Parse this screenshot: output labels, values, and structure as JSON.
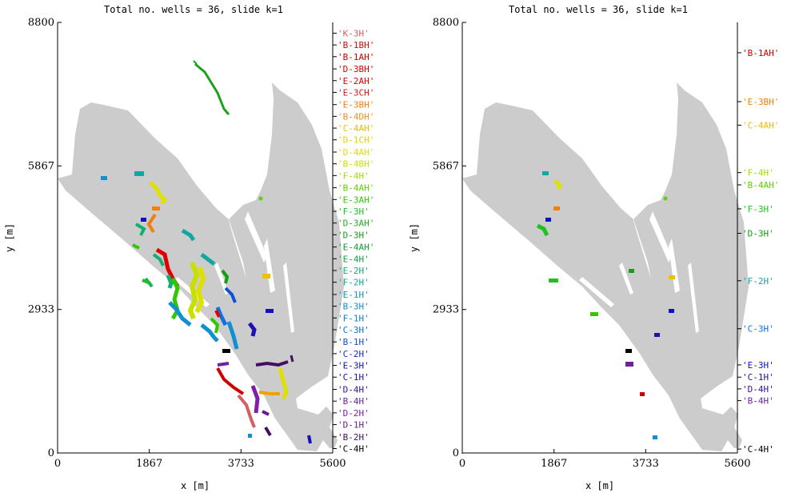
{
  "chart_data": [
    {
      "type": "map",
      "title": "Total no.  wells = 36, slide k=1",
      "xlabel": "x [m]",
      "ylabel": "y [m]",
      "xlim": [
        0,
        5600
      ],
      "ylim": [
        0,
        8800
      ],
      "xticks": [
        "0",
        "1867",
        "3733",
        "5600"
      ],
      "yticks": [
        "0",
        "2933",
        "5867",
        "8800"
      ],
      "xtick_values": [
        0,
        1867,
        3733,
        5600
      ],
      "ytick_values": [
        0,
        2933,
        5867,
        8800
      ],
      "grid": false,
      "well_labels": [
        {
          "label": "'K-3H'",
          "color": "#d45f5f",
          "y": 8580
        },
        {
          "label": "'B-1BH'",
          "color": "#cc1010",
          "y": 8340
        },
        {
          "label": "'B-1AH'",
          "color": "#d00000",
          "y": 8100
        },
        {
          "label": "'D-3BH'",
          "color": "#d80000",
          "y": 7850
        },
        {
          "label": "'E-2AH'",
          "color": "#e00000",
          "y": 7610
        },
        {
          "label": "'E-3CH'",
          "color": "#e81010",
          "y": 7370
        },
        {
          "label": "'E-3BH'",
          "color": "#f08010",
          "y": 7120
        },
        {
          "label": "'B-4DH'",
          "color": "#f09020",
          "y": 6880
        },
        {
          "label": "'C-4AH'",
          "color": "#e8c000",
          "y": 6640
        },
        {
          "label": "'D-1CH'",
          "color": "#e8d000",
          "y": 6400
        },
        {
          "label": "'D-4AH'",
          "color": "#e0e000",
          "y": 6150
        },
        {
          "label": "'B-4BH'",
          "color": "#d0e000",
          "y": 5910
        },
        {
          "label": "'F-4H'",
          "color": "#a0e000",
          "y": 5670
        },
        {
          "label": "'B-4AH'",
          "color": "#60d000",
          "y": 5420
        },
        {
          "label": "'E-3AH'",
          "color": "#30c800",
          "y": 5180
        },
        {
          "label": "'F-3H'",
          "color": "#20c020",
          "y": 4940
        },
        {
          "label": "'D-3AH'",
          "color": "#20b020",
          "y": 4700
        },
        {
          "label": "'D-3H'",
          "color": "#10a010",
          "y": 4460
        },
        {
          "label": "'E-4AH'",
          "color": "#10a030",
          "y": 4210
        },
        {
          "label": "'E-4H'",
          "color": "#10a840",
          "y": 3970
        },
        {
          "label": "'E-2H'",
          "color": "#10b070",
          "y": 3730
        },
        {
          "label": "'F-2H'",
          "color": "#10a8a0",
          "y": 3490
        },
        {
          "label": "'E-1H'",
          "color": "#1098c0",
          "y": 3240
        },
        {
          "label": "'B-3H'",
          "color": "#1090d0",
          "y": 3000
        },
        {
          "label": "'F-1H'",
          "color": "#1080d8",
          "y": 2760
        },
        {
          "label": "'C-3H'",
          "color": "#1070e0",
          "y": 2520
        },
        {
          "label": "'B-1H'",
          "color": "#1050d8",
          "y": 2270
        },
        {
          "label": "'C-2H'",
          "color": "#1030d0",
          "y": 2030
        },
        {
          "label": "'E-3H'",
          "color": "#1010c0",
          "y": 1790
        },
        {
          "label": "'C-1H'",
          "color": "#2010b0",
          "y": 1550
        },
        {
          "label": "'D-4H'",
          "color": "#3010a0",
          "y": 1300
        },
        {
          "label": "'B-4H'",
          "color": "#7020a0",
          "y": 1060
        },
        {
          "label": "'D-2H'",
          "color": "#8020a8",
          "y": 820
        },
        {
          "label": "'D-1H'",
          "color": "#6a1a90",
          "y": 580
        },
        {
          "label": "'B-2H'",
          "color": "#401060",
          "y": 330
        },
        {
          "label": "'C-4H'",
          "color": "#000000",
          "y": 90
        }
      ]
    },
    {
      "type": "map",
      "title": "Total no.  wells = 36, slide k=1",
      "xlabel": "x [m]",
      "ylabel": "y [m]",
      "xlim": [
        0,
        5600
      ],
      "ylim": [
        0,
        8800
      ],
      "xticks": [
        "0",
        "1867",
        "3733",
        "5600"
      ],
      "yticks": [
        "0",
        "2933",
        "5867",
        "8800"
      ],
      "xtick_values": [
        0,
        1867,
        3733,
        5600
      ],
      "ytick_values": [
        0,
        2933,
        5867,
        8800
      ],
      "grid": false,
      "well_labels": [
        {
          "label": "'B-1AH'",
          "color": "#d00000",
          "y": 8180
        },
        {
          "label": "'E-3BH'",
          "color": "#f08010",
          "y": 7180
        },
        {
          "label": "'C-4AH'",
          "color": "#e8c000",
          "y": 6700
        },
        {
          "label": "'F-4H'",
          "color": "#a0e000",
          "y": 5730
        },
        {
          "label": "'B-4AH'",
          "color": "#60d000",
          "y": 5480
        },
        {
          "label": "'F-3H'",
          "color": "#20c020",
          "y": 4990
        },
        {
          "label": "'D-3H'",
          "color": "#10a010",
          "y": 4490
        },
        {
          "label": "'F-2H'",
          "color": "#10a8a0",
          "y": 3520
        },
        {
          "label": "'C-3H'",
          "color": "#1070e0",
          "y": 2540
        },
        {
          "label": "'E-3H'",
          "color": "#1010c0",
          "y": 1800
        },
        {
          "label": "'C-1H'",
          "color": "#2010b0",
          "y": 1550
        },
        {
          "label": "'D-4H'",
          "color": "#3010a0",
          "y": 1310
        },
        {
          "label": "'B-4H'",
          "color": "#7020a0",
          "y": 1070
        },
        {
          "label": "'C-4H'",
          "color": "#000000",
          "y": 80
        }
      ]
    }
  ]
}
